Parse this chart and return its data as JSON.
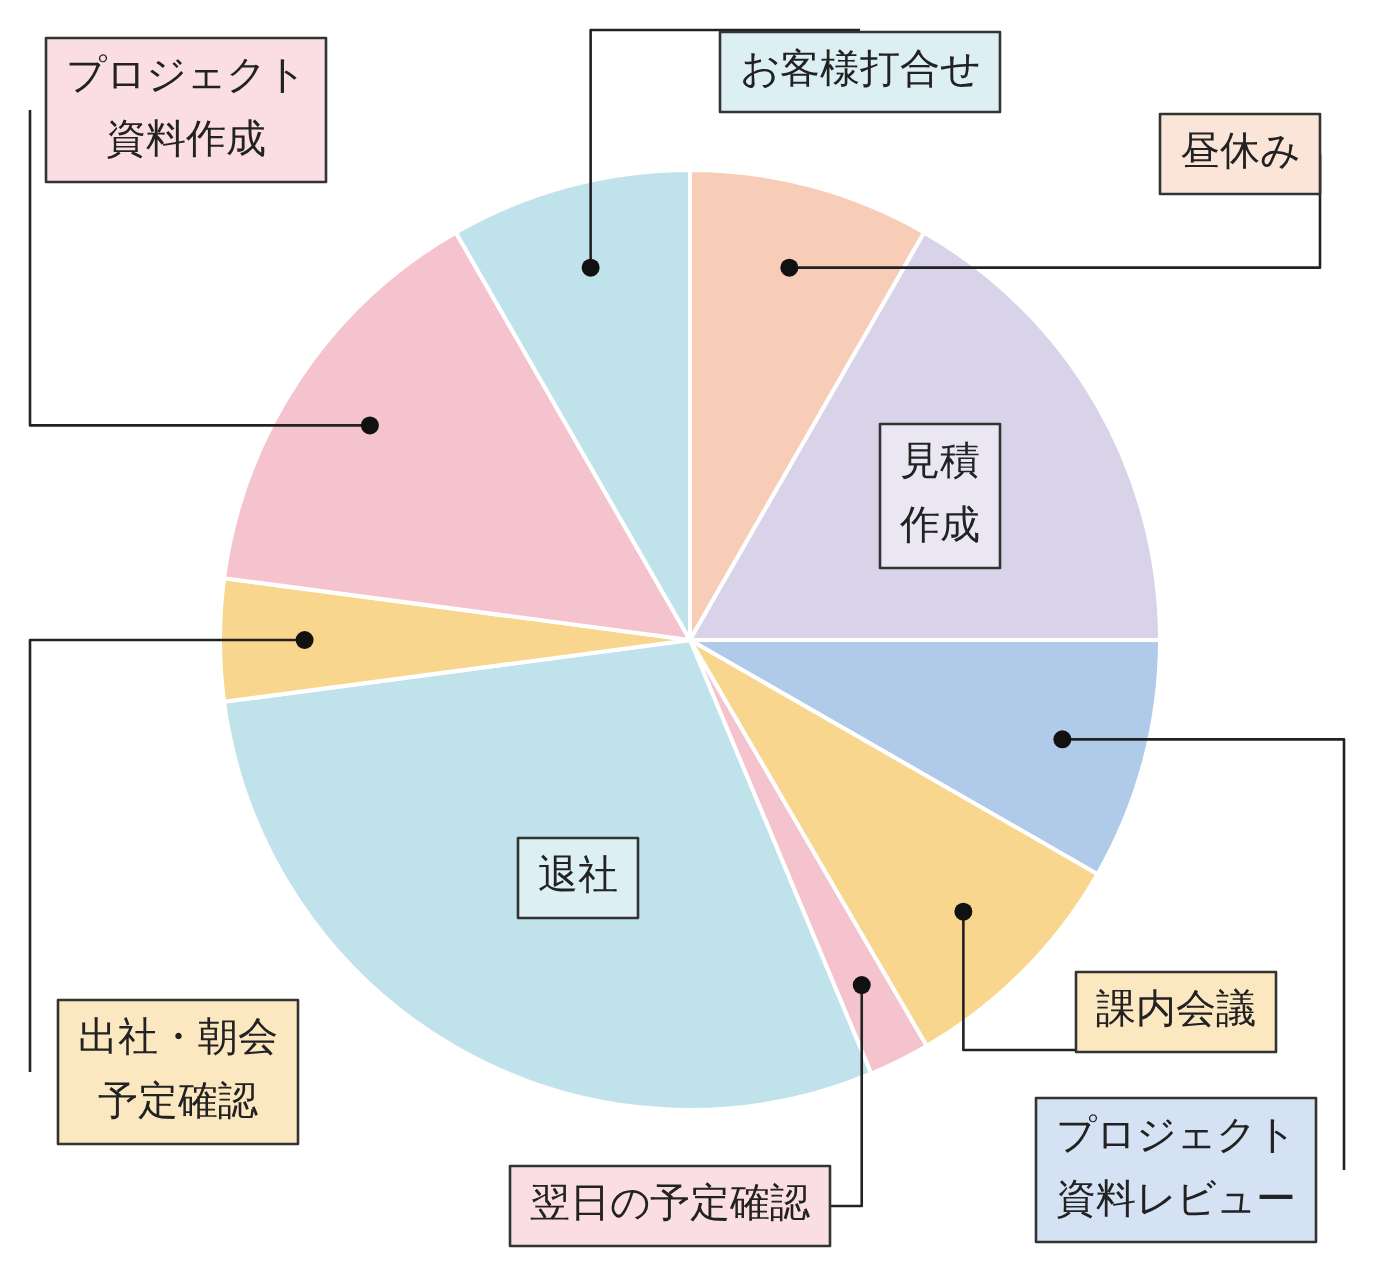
{
  "chart_data": {
    "type": "pie",
    "categories": [
      "昼休み",
      "見積作成",
      "プロジェクト資料レビュー",
      "課内会議",
      "翌日の予定確認",
      "退社",
      "出社・朝会予定確認",
      "プロジェクト資料作成",
      "お客様打合せ"
    ],
    "values": [
      8.3,
      16.7,
      8.3,
      8.3,
      2.1,
      29.2,
      4.2,
      14.6,
      8.3
    ],
    "colors": [
      "#f7cdb8",
      "#d8d3e8",
      "#b0cbe9",
      "#f8d68e",
      "#f5c3cd",
      "#c0e2ea",
      "#f8d68e",
      "#f5c3cd",
      "#c0e2ea"
    ],
    "legend": false
  }
}
